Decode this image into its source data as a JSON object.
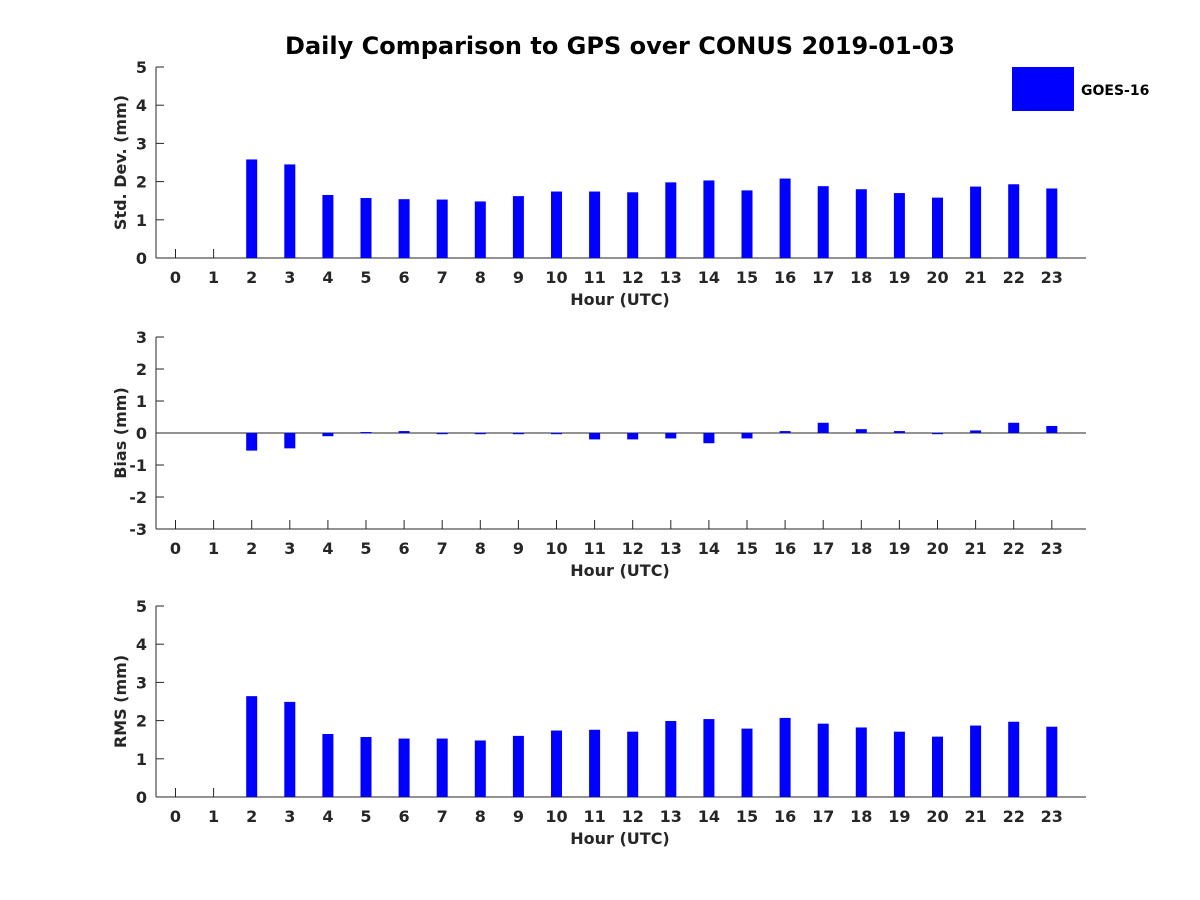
{
  "figure_title": "Daily Comparison to GPS over CONUS 2019-01-03",
  "legend": {
    "label": "GOES-16",
    "placement": "top-right",
    "color": "#0000ff"
  },
  "chart_data": [
    {
      "type": "bar",
      "ylabel": "Std. Dev. (mm)",
      "xlabel": "Hour (UTC)",
      "ylim": [
        0,
        5
      ],
      "yticks": [
        0,
        1,
        2,
        3,
        4,
        5
      ],
      "categories": [
        "0",
        "1",
        "2",
        "3",
        "4",
        "5",
        "6",
        "7",
        "8",
        "9",
        "10",
        "11",
        "12",
        "13",
        "14",
        "15",
        "16",
        "17",
        "18",
        "19",
        "20",
        "21",
        "22",
        "23"
      ],
      "series": [
        {
          "name": "GOES-16",
          "color": "#0000ff",
          "values": [
            null,
            null,
            2.58,
            2.45,
            1.65,
            1.57,
            1.54,
            1.53,
            1.48,
            1.62,
            1.74,
            1.74,
            1.72,
            1.98,
            2.03,
            1.77,
            2.08,
            1.88,
            1.8,
            1.7,
            1.58,
            1.87,
            1.93,
            1.82
          ]
        }
      ]
    },
    {
      "type": "bar",
      "ylabel": "Bias (mm)",
      "xlabel": "Hour (UTC)",
      "ylim": [
        -3,
        3
      ],
      "yticks": [
        -3,
        -2,
        -1,
        0,
        1,
        2,
        3
      ],
      "categories": [
        "0",
        "1",
        "2",
        "3",
        "4",
        "5",
        "6",
        "7",
        "8",
        "9",
        "10",
        "11",
        "12",
        "13",
        "14",
        "15",
        "16",
        "17",
        "18",
        "19",
        "20",
        "21",
        "22",
        "23"
      ],
      "series": [
        {
          "name": "GOES-16",
          "color": "#0000ff",
          "values": [
            null,
            null,
            -0.55,
            -0.48,
            -0.1,
            0.03,
            0.06,
            -0.01,
            -0.01,
            -0.01,
            -0.01,
            -0.2,
            -0.2,
            -0.17,
            -0.32,
            -0.17,
            0.06,
            0.32,
            0.12,
            0.06,
            -0.01,
            0.08,
            0.32,
            0.22
          ]
        }
      ]
    },
    {
      "type": "bar",
      "ylabel": "RMS (mm)",
      "xlabel": "Hour (UTC)",
      "ylim": [
        0,
        5
      ],
      "yticks": [
        0,
        1,
        2,
        3,
        4,
        5
      ],
      "categories": [
        "0",
        "1",
        "2",
        "3",
        "4",
        "5",
        "6",
        "7",
        "8",
        "9",
        "10",
        "11",
        "12",
        "13",
        "14",
        "15",
        "16",
        "17",
        "18",
        "19",
        "20",
        "21",
        "22",
        "23"
      ],
      "series": [
        {
          "name": "GOES-16",
          "color": "#0000ff",
          "values": [
            null,
            null,
            2.64,
            2.49,
            1.65,
            1.57,
            1.53,
            1.53,
            1.48,
            1.6,
            1.74,
            1.76,
            1.71,
            1.99,
            2.04,
            1.79,
            2.07,
            1.92,
            1.82,
            1.71,
            1.58,
            1.87,
            1.97,
            1.84
          ]
        }
      ]
    }
  ]
}
